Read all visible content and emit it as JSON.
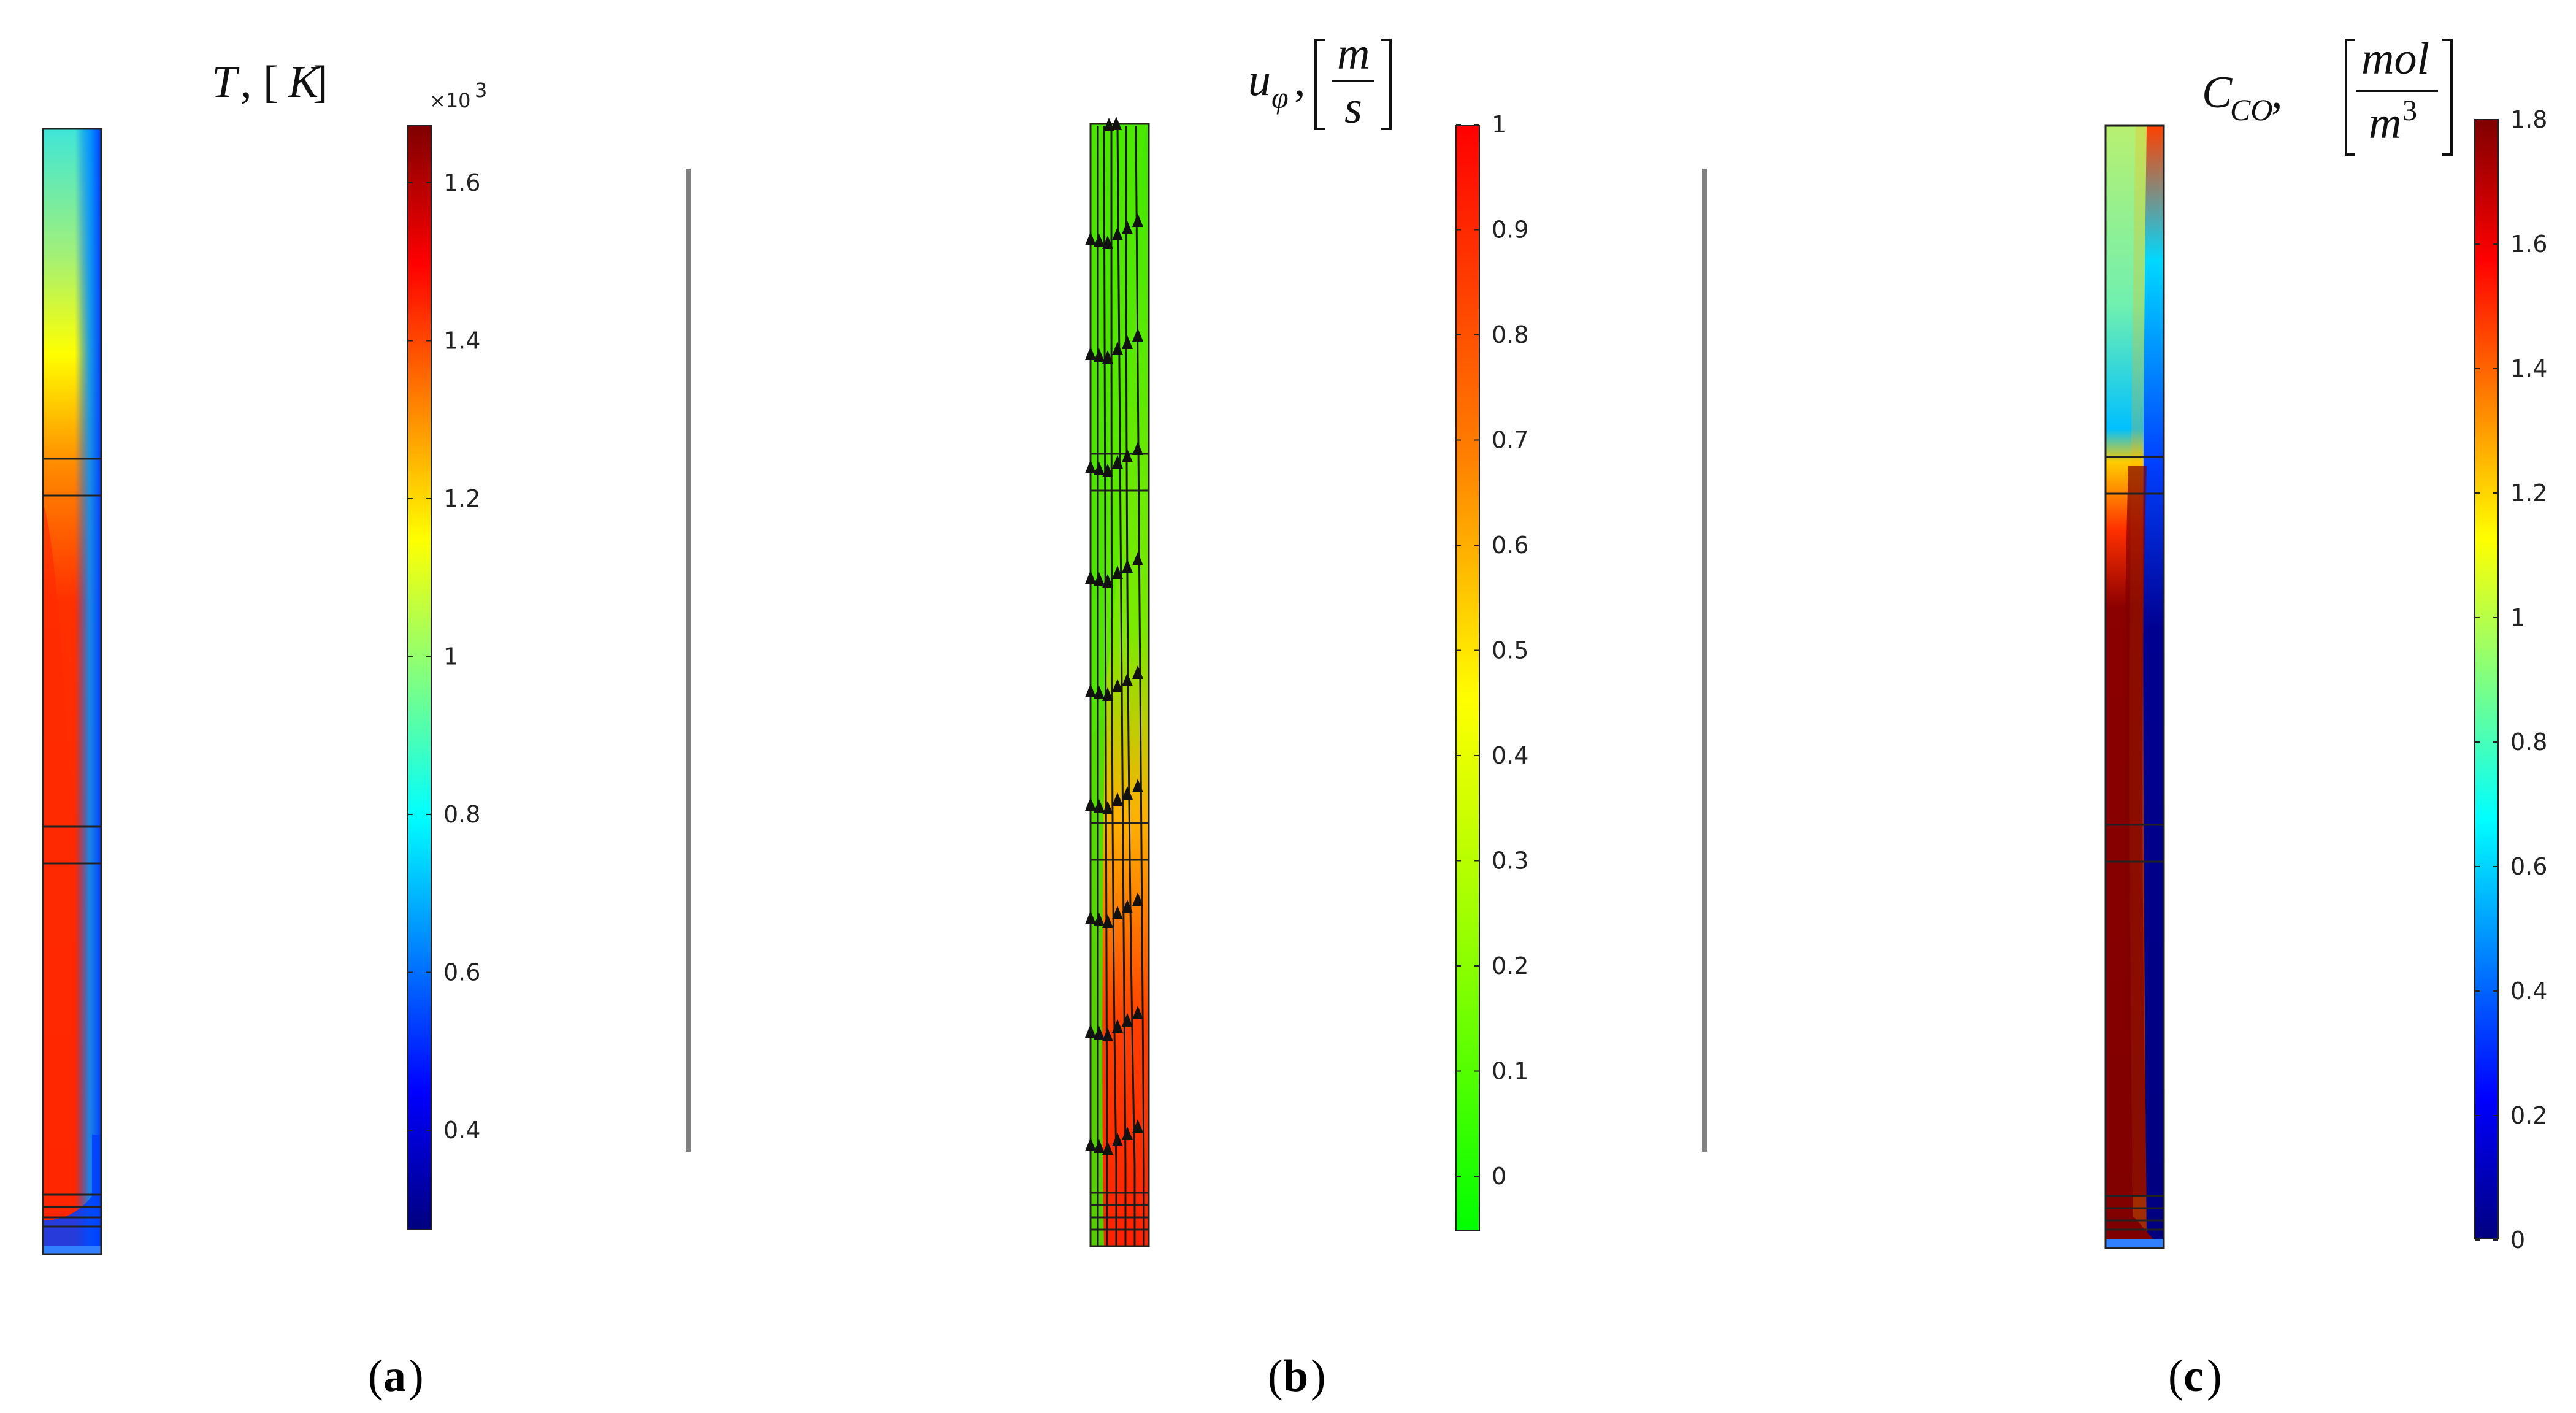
{
  "panels": [
    {
      "id": "a",
      "caption_letter": "a",
      "quantity": "T",
      "unit": "K",
      "colorbar_multiplier": "×10",
      "colorbar_exponent": "3",
      "colorbar_ticks": [
        "1.6",
        "1.4",
        "1.2",
        "1",
        "0.8",
        "0.6",
        "0.4"
      ],
      "colorbar_colormap": "rainbow-dark"
    },
    {
      "id": "b",
      "caption_letter": "b",
      "quantity": "u",
      "quantity_subscript": "φ",
      "unit_numerator": "m",
      "unit_denominator": "s",
      "colorbar_ticks": [
        "1",
        "0.9",
        "0.8",
        "0.7",
        "0.6",
        "0.5",
        "0.4",
        "0.3",
        "0.2",
        "0.1",
        "0"
      ],
      "colorbar_colormap": "traffic-light"
    },
    {
      "id": "c",
      "caption_letter": "c",
      "quantity": "C",
      "quantity_subscript": "CO",
      "unit_numerator": "mol",
      "unit_denominator": "m",
      "unit_denominator_exponent": "3",
      "colorbar_ticks": [
        "1.8",
        "1.6",
        "1.4",
        "1.2",
        "1",
        "0.8",
        "0.6",
        "0.4",
        "0.2",
        "0"
      ],
      "colorbar_colormap": "rainbow-dark"
    }
  ],
  "colors": {
    "rainbow_dark": [
      "#7f0000",
      "#ff0000",
      "#ff8000",
      "#ffff00",
      "#80ff80",
      "#00ffff",
      "#0080ff",
      "#0000ff",
      "#00007f"
    ],
    "traffic_light": [
      "#ff0000",
      "#ff8000",
      "#ffff00",
      "#80ff00",
      "#00ff00"
    ],
    "separator": "#808080"
  }
}
